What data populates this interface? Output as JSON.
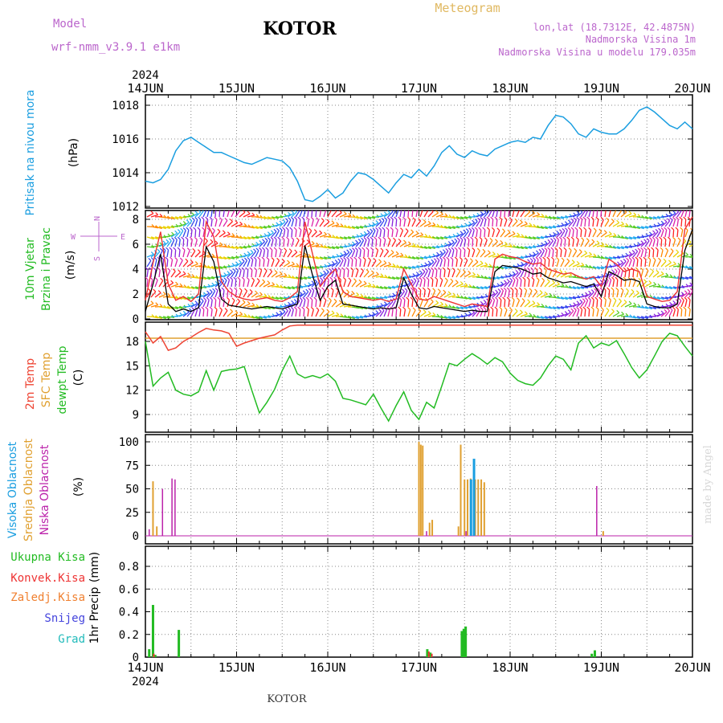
{
  "header": {
    "model_label": "Model",
    "model_name": "wrf-nmm_v3.9.1 e1km",
    "station": "KOTOR",
    "meteogram": "Meteogram",
    "lonlat": "lon,lat (18.7312E, 42.4875N)",
    "elevation": "Nadmorska Visina 1m",
    "model_elevation": "Nadmorska Visina u modelu 179.035m",
    "year_top": "2024",
    "year_bottom": "2024",
    "footer_station": "KOTOR",
    "watermark": "made by Angel"
  },
  "colors": {
    "pressure": "#1a9ee0",
    "wind_speed": "#000000",
    "wind_gust": "#ee3333",
    "temp2m": "#ee4433",
    "sfc_temp": "#e0a030",
    "dewpoint": "#22bb22",
    "high_cloud": "#1a9ee0",
    "mid_cloud": "#e0a030",
    "low_cloud": "#bb22aa",
    "total_precip": "#22bb22",
    "conv_precip": "#ee3333",
    "frozen": "#f08030",
    "snow": "#4444dd",
    "graupel": "#22bbbb",
    "grid": "#888888"
  },
  "chart_data": [
    {
      "type": "line",
      "panel": "pressure",
      "ylabel_main": "Pritisak na nivou mora",
      "ylabel_unit": "(hPa)",
      "ylim": [
        1012,
        1019
      ],
      "yticks": [
        1012,
        1014,
        1016,
        1018
      ],
      "xticks": [
        "14JUN",
        "15JUN",
        "16JUN",
        "17JUN",
        "18JUN",
        "19JUN",
        "20JUN"
      ],
      "grid": true,
      "x_hours": [
        0,
        2,
        4,
        6,
        8,
        10,
        12,
        14,
        16,
        18,
        20,
        22,
        24,
        26,
        28,
        30,
        32,
        34,
        36,
        38,
        40,
        42,
        44,
        46,
        48,
        50,
        52,
        54,
        56,
        58,
        60,
        62,
        64,
        66,
        68,
        70,
        72,
        74,
        76,
        78,
        80,
        82,
        84,
        86,
        88,
        90,
        92,
        94,
        96,
        98,
        100,
        102,
        104,
        106,
        108,
        110,
        112,
        114,
        116,
        118,
        120,
        122,
        124,
        126,
        128,
        130,
        132,
        134,
        136,
        138,
        140,
        142,
        144
      ],
      "series": [
        {
          "values": [
            1013.5,
            1013.4,
            1013.6,
            1014.2,
            1015.3,
            1015.9,
            1016.1,
            1015.8,
            1015.5,
            1015.2,
            1015.2,
            1015.0,
            1014.8,
            1014.6,
            1014.5,
            1014.7,
            1014.9,
            1014.8,
            1014.7,
            1014.3,
            1013.5,
            1012.4,
            1012.3,
            1012.6,
            1013.0,
            1012.5,
            1012.8,
            1013.5,
            1014.0,
            1013.9,
            1013.6,
            1013.2,
            1012.8,
            1013.4,
            1013.9,
            1013.7,
            1014.2,
            1013.8,
            1014.4,
            1015.2,
            1015.6,
            1015.1,
            1014.9,
            1015.3,
            1015.1,
            1015.0,
            1015.4,
            1015.6,
            1015.8,
            1015.9,
            1015.8,
            1016.1,
            1016.0,
            1016.8,
            1017.4,
            1017.3,
            1016.9,
            1016.3,
            1016.1,
            1016.6,
            1016.4,
            1016.3,
            1016.3,
            1016.6,
            1017.1,
            1017.7,
            1017.9,
            1017.6,
            1017.2,
            1016.8,
            1016.6,
            1017.0,
            1016.6
          ]
        }
      ]
    },
    {
      "type": "line",
      "panel": "wind",
      "ylabel_main": "10m Vjetar",
      "ylabel_sub": "Brzina i Pravac",
      "ylabel_unit": "(m/s)",
      "compass": [
        "N",
        "E",
        "S",
        "W"
      ],
      "ylim": [
        0,
        8.5
      ],
      "yticks": [
        0,
        2,
        4,
        6,
        8
      ],
      "grid": true,
      "x_hours": [
        0,
        2,
        4,
        6,
        8,
        10,
        12,
        14,
        16,
        18,
        20,
        22,
        24,
        26,
        28,
        30,
        32,
        34,
        36,
        38,
        40,
        42,
        44,
        46,
        48,
        50,
        52,
        54,
        56,
        58,
        60,
        62,
        64,
        66,
        68,
        70,
        72,
        74,
        76,
        78,
        80,
        82,
        84,
        86,
        88,
        90,
        92,
        94,
        96,
        98,
        100,
        102,
        104,
        106,
        108,
        110,
        112,
        114,
        116,
        118,
        120,
        122,
        124,
        126,
        128,
        130,
        132,
        134,
        136,
        138,
        140,
        142,
        144
      ],
      "series": [
        {
          "name": "speed",
          "values": [
            0.6,
            2.8,
            5.2,
            1.2,
            0.6,
            0.8,
            0.6,
            0.9,
            5.8,
            4.6,
            1.6,
            1.1,
            1.0,
            0.9,
            0.8,
            0.9,
            1.0,
            0.9,
            0.8,
            1.0,
            1.2,
            5.9,
            3.5,
            1.5,
            2.6,
            3.1,
            1.2,
            1.1,
            1.0,
            0.9,
            0.8,
            0.9,
            0.8,
            0.9,
            3.3,
            2.0,
            0.9,
            0.8,
            1.0,
            0.9,
            0.8,
            0.7,
            0.6,
            0.7,
            0.6,
            0.6,
            3.8,
            4.3,
            4.2,
            4.1,
            3.9,
            3.6,
            3.7,
            3.3,
            3.1,
            2.9,
            3.0,
            2.8,
            2.6,
            2.8,
            1.8,
            3.8,
            3.5,
            3.1,
            3.2,
            3.0,
            1.2,
            1.0,
            0.9,
            0.9,
            1.2,
            5.5,
            7.2
          ]
        },
        {
          "name": "gust",
          "values": [
            1.5,
            4.5,
            7.0,
            2.8,
            1.5,
            1.8,
            1.4,
            2.0,
            7.8,
            6.6,
            3.0,
            2.2,
            1.8,
            1.6,
            1.5,
            1.6,
            1.7,
            1.5,
            1.4,
            1.7,
            2.2,
            7.8,
            5.2,
            2.6,
            3.4,
            4.0,
            2.2,
            1.8,
            1.7,
            1.6,
            1.5,
            1.6,
            1.4,
            1.6,
            4.0,
            2.8,
            1.6,
            1.5,
            1.8,
            1.6,
            1.4,
            1.2,
            1.0,
            1.2,
            1.1,
            1.0,
            4.8,
            5.2,
            5.0,
            4.9,
            4.6,
            4.4,
            4.5,
            4.0,
            3.8,
            3.6,
            3.7,
            3.4,
            3.2,
            3.4,
            2.6,
            4.8,
            4.4,
            3.8,
            4.0,
            3.8,
            1.8,
            1.6,
            1.4,
            1.5,
            2.2,
            7.2,
            8.2
          ]
        }
      ]
    },
    {
      "type": "line",
      "panel": "temperature",
      "ylabel_main": "2m Temp",
      "ylabel_sub": "SFC Temp",
      "ylabel_sub2": "dewpt Temp",
      "ylabel_unit": "(C)",
      "ylim": [
        7,
        20
      ],
      "yticks": [
        9,
        12,
        15,
        18
      ],
      "grid": true,
      "x_hours": [
        0,
        2,
        4,
        6,
        8,
        10,
        12,
        14,
        16,
        18,
        20,
        22,
        24,
        26,
        28,
        30,
        32,
        34,
        36,
        38,
        40,
        42,
        44,
        46,
        48,
        50,
        52,
        54,
        56,
        58,
        60,
        62,
        64,
        66,
        68,
        70,
        72,
        74,
        76,
        78,
        80,
        82,
        84,
        86,
        88,
        90,
        92,
        94,
        96,
        98,
        100,
        102,
        104,
        106,
        108,
        110,
        112,
        114,
        116,
        118,
        120,
        122,
        124,
        126,
        128,
        130,
        132,
        134,
        136,
        138,
        140,
        142,
        144
      ],
      "series": [
        {
          "name": "2m",
          "values": [
            19.2,
            17.8,
            18.6,
            16.9,
            17.2,
            18.0,
            18.5,
            19.1,
            19.6,
            19.4,
            19.3,
            19.0,
            17.4,
            17.8,
            18.1,
            18.4,
            18.6,
            18.8,
            19.4,
            19.9,
            20.0,
            20.0,
            20.0,
            20.0,
            20.0,
            20.0,
            20.0,
            20.0,
            20.0,
            20.0,
            20.0,
            20.0,
            20.0,
            20.0,
            20.0,
            20.0,
            20.0,
            20.0,
            20.0,
            20.0,
            20.0,
            20.0,
            20.0,
            20.0,
            20.0,
            20.0,
            20.0,
            20.0,
            20.0,
            20.0,
            20.0,
            20.0,
            20.0,
            20.0,
            20.0,
            20.0,
            20.0,
            20.0,
            20.0,
            20.0,
            20.0,
            20.0,
            20.0,
            20.0,
            20.0,
            20.0,
            20.0,
            20.0,
            20.0,
            20.0,
            20.0,
            20.0,
            20.0
          ]
        },
        {
          "name": "sfc",
          "values": [
            18.4,
            18.4,
            18.4,
            18.4,
            18.4,
            18.4,
            18.4,
            18.4,
            18.4,
            18.4,
            18.4,
            18.4,
            18.4,
            18.4,
            18.4,
            18.4,
            18.4,
            18.4,
            18.4,
            18.4,
            18.4,
            18.4,
            18.4,
            18.4,
            18.4,
            18.4,
            18.4,
            18.4,
            18.4,
            18.4,
            18.4,
            18.4,
            18.4,
            18.4,
            18.4,
            18.4,
            18.4,
            18.4,
            18.4,
            18.4,
            18.4,
            18.4,
            18.4,
            18.4,
            18.4,
            18.4,
            18.4,
            18.4,
            18.4,
            18.4,
            18.4,
            18.4,
            18.4,
            18.4,
            18.4,
            18.4,
            18.4,
            18.4,
            18.4,
            18.4,
            18.4,
            18.4,
            18.4,
            18.4,
            18.4,
            18.4,
            18.4,
            18.4,
            18.4,
            18.4,
            18.4,
            18.4,
            18.4
          ]
        },
        {
          "name": "dewpt",
          "values": [
            18.0,
            12.5,
            13.5,
            14.2,
            12.0,
            11.5,
            11.3,
            11.8,
            14.4,
            12.0,
            14.3,
            14.5,
            14.6,
            14.9,
            12.0,
            9.2,
            10.5,
            12.1,
            14.4,
            16.2,
            14.0,
            13.5,
            13.8,
            13.5,
            14.0,
            13.1,
            11.0,
            10.8,
            10.5,
            10.2,
            11.5,
            9.8,
            8.2,
            10.1,
            11.8,
            9.5,
            8.4,
            10.5,
            9.8,
            12.5,
            15.3,
            15.0,
            15.8,
            16.5,
            15.9,
            15.2,
            16.0,
            15.5,
            14.1,
            13.2,
            12.8,
            12.6,
            13.5,
            15.0,
            16.2,
            15.8,
            14.5,
            17.8,
            18.7,
            17.2,
            17.8,
            17.5,
            18.1,
            16.5,
            14.8,
            13.5,
            14.5,
            16.2,
            18.0,
            19.0,
            18.7,
            17.4,
            16.2
          ]
        }
      ]
    },
    {
      "type": "bar",
      "panel": "clouds",
      "ylabel_main": "Visoka Oblacnost",
      "ylabel_sub": "Srednja Oblacnost",
      "ylabel_sub2": "Niska Oblacnost",
      "ylabel_unit": "(%)",
      "ylim": [
        0,
        100
      ],
      "yticks": [
        0,
        25,
        50,
        75,
        100
      ],
      "grid": true,
      "series": [
        {
          "name": "high",
          "bars": [
            [
              85.7,
              60
            ],
            [
              86.5,
              82
            ]
          ]
        },
        {
          "name": "mid",
          "bars": [
            [
              2.0,
              58
            ],
            [
              3.0,
              10
            ],
            [
              72.0,
              100
            ],
            [
              72.5,
              97
            ],
            [
              73.0,
              96
            ],
            [
              74.8,
              14
            ],
            [
              75.5,
              17
            ],
            [
              82.4,
              10
            ],
            [
              83.0,
              97
            ],
            [
              84.0,
              60
            ],
            [
              84.8,
              60
            ],
            [
              85.6,
              61
            ],
            [
              86.8,
              60
            ],
            [
              87.6,
              60
            ],
            [
              88.4,
              60
            ],
            [
              89.2,
              57
            ],
            [
              120.5,
              5
            ]
          ]
        },
        {
          "name": "low",
          "bars": [
            [
              1.0,
              7
            ],
            [
              4.5,
              50
            ],
            [
              7.0,
              61
            ],
            [
              7.8,
              60
            ],
            [
              74.0,
              5
            ],
            [
              84.4,
              5
            ],
            [
              118.8,
              53
            ]
          ]
        }
      ]
    },
    {
      "type": "bar",
      "panel": "precip",
      "legend": [
        "Ukupna Kisa",
        "Konvek.Kisa",
        "Zaledj.Kisa",
        "Snijeg",
        "Grad"
      ],
      "ylabel_main": "1hr Precip",
      "ylabel_unit": "(mm)",
      "ylim": [
        0,
        1.0
      ],
      "yticks": [
        0,
        0.2,
        0.4,
        0.6,
        0.8
      ],
      "grid": true,
      "series": [
        {
          "name": "total",
          "bars": [
            [
              1.0,
              0.07
            ],
            [
              2.0,
              0.46
            ],
            [
              2.6,
              0.02
            ],
            [
              8.8,
              0.24
            ],
            [
              74.2,
              0.07
            ],
            [
              75.0,
              0.04
            ],
            [
              83.3,
              0.23
            ],
            [
              83.8,
              0.25
            ],
            [
              84.3,
              0.27
            ],
            [
              117.5,
              0.03
            ],
            [
              118.3,
              0.06
            ]
          ]
        },
        {
          "name": "conv",
          "bars": [
            [
              2.2,
              0.03
            ],
            [
              74.6,
              0.05
            ],
            [
              75.4,
              0.03
            ]
          ]
        }
      ]
    }
  ]
}
